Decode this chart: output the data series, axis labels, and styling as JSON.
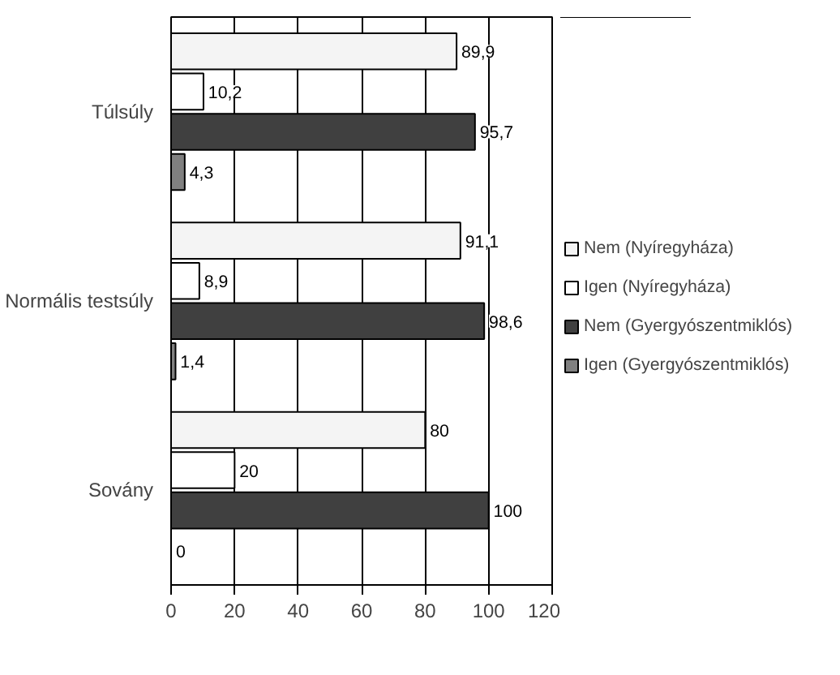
{
  "chart_data": {
    "type": "bar",
    "orientation": "horizontal",
    "categories": [
      "Túlsúly",
      "Normális testsúly",
      "Sovány"
    ],
    "series": [
      {
        "name": "Nem (Nyíregyháza)",
        "color": "#f4f4f4",
        "values": [
          89.9,
          91.1,
          80
        ],
        "value_labels": [
          "89,9",
          "91,1",
          "80"
        ]
      },
      {
        "name": "Igen (Nyíregyháza)",
        "color": "#ffffff",
        "values": [
          10.2,
          8.9,
          20
        ],
        "value_labels": [
          "10,2",
          "8,9",
          "20"
        ]
      },
      {
        "name": "Nem (Gyergyószentmiklós)",
        "color": "#404040",
        "values": [
          95.7,
          98.6,
          100
        ],
        "value_labels": [
          "95,7",
          "98,6",
          "100"
        ]
      },
      {
        "name": "Igen (Gyergyószentmiklós)",
        "color": "#808080",
        "values": [
          4.3,
          1.4,
          0
        ],
        "value_labels": [
          "4,3",
          "1,4",
          "0"
        ]
      }
    ],
    "xlim": [
      0,
      120
    ],
    "xticks": [
      0,
      20,
      40,
      60,
      80,
      100,
      120
    ],
    "grid": "x",
    "legend": "right"
  }
}
